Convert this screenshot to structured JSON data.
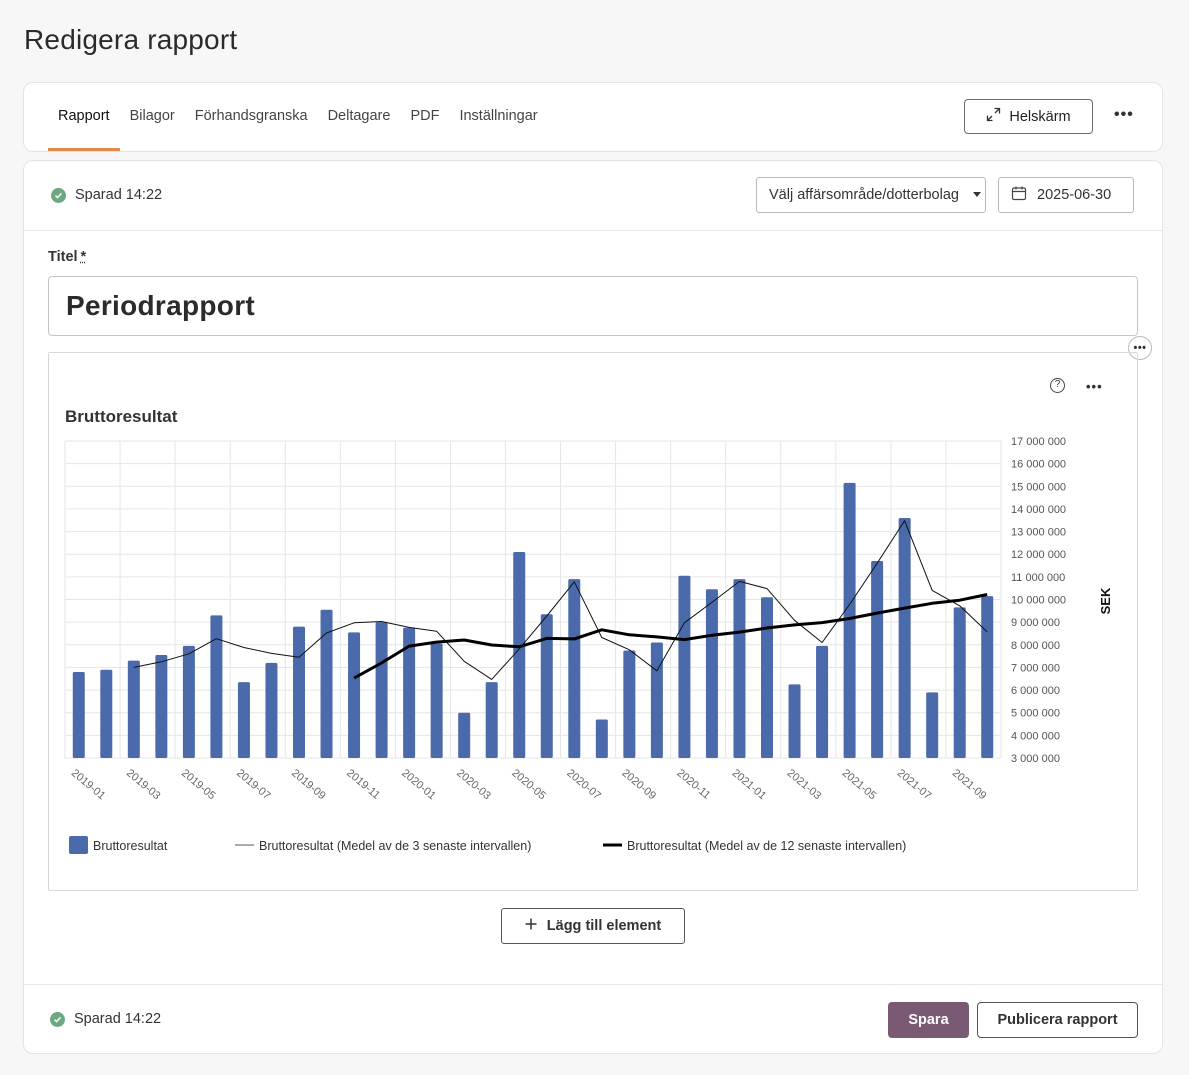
{
  "page": {
    "title": "Redigera rapport"
  },
  "tabs": [
    {
      "label": "Rapport",
      "active": true
    },
    {
      "label": "Bilagor",
      "active": false
    },
    {
      "label": "Förhandsgranska",
      "active": false
    },
    {
      "label": "Deltagare",
      "active": false
    },
    {
      "label": "PDF",
      "active": false
    },
    {
      "label": "Inställningar",
      "active": false
    }
  ],
  "toolbar": {
    "fullscreen_label": "Helskärm"
  },
  "status": {
    "saved_label": "Sparad 14:22"
  },
  "filters": {
    "business_area_placeholder": "Välj affärsområde/dotterbolag",
    "date": "2025-06-30"
  },
  "form": {
    "title_label": "Titel",
    "required_marker": "*",
    "title_value": "Periodrapport"
  },
  "chart_data": {
    "type": "bar",
    "title": "Bruttoresultat",
    "ylabel": "SEK",
    "ylim": [
      3000000,
      17000000
    ],
    "y_ticks": [
      3000000,
      4000000,
      5000000,
      6000000,
      7000000,
      8000000,
      9000000,
      10000000,
      11000000,
      12000000,
      13000000,
      14000000,
      15000000,
      16000000,
      17000000
    ],
    "y_tick_labels": [
      "3 000 000",
      "4 000 000",
      "5 000 000",
      "6 000 000",
      "7 000 000",
      "8 000 000",
      "9 000 000",
      "10 000 000",
      "11 000 000",
      "12 000 000",
      "13 000 000",
      "14 000 000",
      "15 000 000",
      "16 000 000",
      "17 000 000"
    ],
    "categories": [
      "2019-01",
      "2019-02",
      "2019-03",
      "2019-04",
      "2019-05",
      "2019-06",
      "2019-07",
      "2019-08",
      "2019-09",
      "2019-10",
      "2019-11",
      "2019-12",
      "2020-01",
      "2020-02",
      "2020-03",
      "2020-04",
      "2020-05",
      "2020-06",
      "2020-07",
      "2020-08",
      "2020-09",
      "2020-10",
      "2020-11",
      "2020-12",
      "2021-01",
      "2021-02",
      "2021-03",
      "2021-04",
      "2021-05",
      "2021-06",
      "2021-07",
      "2021-08",
      "2021-09",
      "2021-10"
    ],
    "x_tick_labels": [
      "2019-01",
      "2019-03",
      "2019-05",
      "2019-07",
      "2019-09",
      "2019-11",
      "2020-01",
      "2020-03",
      "2020-05",
      "2020-07",
      "2020-09",
      "2020-11",
      "2021-01",
      "2021-03",
      "2021-05",
      "2021-07",
      "2021-09"
    ],
    "grid": true,
    "legend_position": "bottom",
    "series": [
      {
        "name": "Bruttoresultat",
        "kind": "bar",
        "color": "#4a6aab",
        "values": [
          6800000,
          6900000,
          7300000,
          7550000,
          7950000,
          9300000,
          6350000,
          7200000,
          8800000,
          9550000,
          8550000,
          9000000,
          8750000,
          8050000,
          5000000,
          6350000,
          12100000,
          9350000,
          10900000,
          4700000,
          7750000,
          8100000,
          11050000,
          10450000,
          10900000,
          10100000,
          6250000,
          7950000,
          15150000,
          11700000,
          13600000,
          5900000,
          9650000,
          10150000
        ]
      },
      {
        "name": "Bruttoresultat (Medel av de 3 senaste intervallen)",
        "kind": "line",
        "color": "#111111",
        "values": [
          null,
          null,
          7000000,
          7250000,
          7600000,
          8270000,
          7880000,
          7620000,
          7450000,
          8520000,
          8970000,
          9030000,
          8770000,
          8600000,
          7270000,
          6470000,
          7820000,
          9270000,
          10780000,
          8320000,
          7780000,
          6850000,
          8970000,
          9870000,
          10800000,
          10480000,
          9080000,
          8100000,
          9780000,
          11600000,
          13480000,
          10400000,
          9720000,
          8570000
        ]
      },
      {
        "name": "Bruttoresultat (Medel av de 12 senaste intervallen)",
        "kind": "line",
        "color": "#000000",
        "values": [
          null,
          null,
          null,
          null,
          null,
          null,
          null,
          null,
          null,
          null,
          6530000,
          7200000,
          7940000,
          8120000,
          8210000,
          7990000,
          7910000,
          8280000,
          8260000,
          8660000,
          8440000,
          8350000,
          8230000,
          8420000,
          8560000,
          8740000,
          8880000,
          8980000,
          9160000,
          9400000,
          9620000,
          9830000,
          9970000,
          10220000
        ]
      }
    ]
  },
  "actions": {
    "add_element_label": "Lägg till element",
    "save_label": "Spara",
    "publish_label": "Publicera rapport"
  },
  "icons": {
    "fullscreen": "expand-arrows-icon",
    "more": "more-dots-icon",
    "calendar": "calendar-icon",
    "check": "check-circle-icon",
    "help": "help-circle-icon",
    "plus": "plus-icon"
  }
}
